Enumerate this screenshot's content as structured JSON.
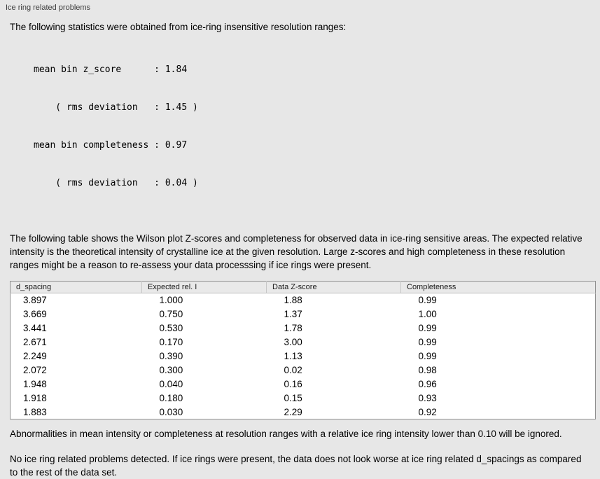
{
  "panel": {
    "title": "Ice ring related problems"
  },
  "intro": "The following statistics were obtained from ice-ring insensitive resolution ranges:",
  "stats_block": {
    "lines": [
      "mean bin z_score      : 1.84",
      "    ( rms deviation   : 1.45 )",
      "mean bin completeness : 0.97",
      "    ( rms deviation   : 0.04 )"
    ]
  },
  "table_description": "The following table shows the Wilson plot Z-scores and completeness for observed data in ice-ring sensitive areas. The expected relative intensity is the theoretical intensity of crystalline ice at the given resolution. Large z-scores and high completeness in these resolution ranges might be a reason to re-assess your data processsing if ice rings were present.",
  "table": {
    "columns": [
      "d_spacing",
      "Expected rel. I",
      "Data Z-score",
      "Completeness"
    ],
    "rows": [
      [
        "3.897",
        "1.000",
        "1.88",
        "0.99"
      ],
      [
        "3.669",
        "0.750",
        "1.37",
        "1.00"
      ],
      [
        "3.441",
        "0.530",
        "1.78",
        "0.99"
      ],
      [
        "2.671",
        "0.170",
        "3.00",
        "0.99"
      ],
      [
        "2.249",
        "0.390",
        "1.13",
        "0.99"
      ],
      [
        "2.072",
        "0.300",
        "0.02",
        "0.98"
      ],
      [
        "1.948",
        "0.040",
        "0.16",
        "0.96"
      ],
      [
        "1.918",
        "0.180",
        "0.15",
        "0.93"
      ],
      [
        "1.883",
        "0.030",
        "2.29",
        "0.92"
      ]
    ]
  },
  "note_ignore": "Abnormalities in mean intensity or completeness at resolution ranges with a relative ice ring intensity lower than 0.10 will be ignored.",
  "conclusion": "No ice ring related problems detected. If ice rings were present, the data does not look worse at ice ring related d_spacings as compared to the rest of the data set.",
  "colors": {
    "background": "#e7e7e7",
    "table_border": "#8f8f8f",
    "table_header_bg": "#e9e9e9",
    "table_bg": "#ffffff"
  }
}
